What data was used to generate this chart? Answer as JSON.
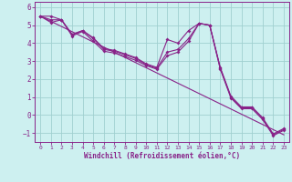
{
  "xlabel": "Windchill (Refroidissement éolien,°C)",
  "background_color": "#cdf0f0",
  "grid_color": "#a0d0d0",
  "line_color": "#882288",
  "spine_color": "#882288",
  "xlim": [
    -0.5,
    23.5
  ],
  "ylim": [
    -1.5,
    6.3
  ],
  "yticks": [
    -1,
    0,
    1,
    2,
    3,
    4,
    5,
    6
  ],
  "xticks": [
    0,
    1,
    2,
    3,
    4,
    5,
    6,
    7,
    8,
    9,
    10,
    11,
    12,
    13,
    14,
    15,
    16,
    17,
    18,
    19,
    20,
    21,
    22,
    23
  ],
  "series1": [
    5.5,
    5.5,
    5.3,
    4.5,
    4.7,
    4.3,
    3.7,
    3.6,
    3.4,
    3.2,
    2.85,
    2.65,
    4.2,
    4.0,
    4.7,
    5.1,
    5.0,
    2.65,
    1.05,
    0.45,
    0.45,
    -0.15,
    -1.05,
    -0.75
  ],
  "series2": [
    5.5,
    5.15,
    5.3,
    4.4,
    4.65,
    4.1,
    3.55,
    3.45,
    3.25,
    3.05,
    2.75,
    2.55,
    3.3,
    3.5,
    4.1,
    5.1,
    5.0,
    2.55,
    0.95,
    0.35,
    0.35,
    -0.25,
    -1.15,
    -0.85
  ],
  "series3": [
    5.5,
    5.3,
    5.3,
    4.45,
    4.7,
    4.25,
    3.65,
    3.55,
    3.35,
    3.15,
    2.8,
    2.6,
    3.5,
    3.65,
    4.25,
    5.1,
    5.0,
    2.6,
    1.0,
    0.4,
    0.4,
    -0.2,
    -1.1,
    -0.8
  ],
  "series4_x": [
    0,
    23
  ],
  "series4_y": [
    5.5,
    -1.1
  ]
}
